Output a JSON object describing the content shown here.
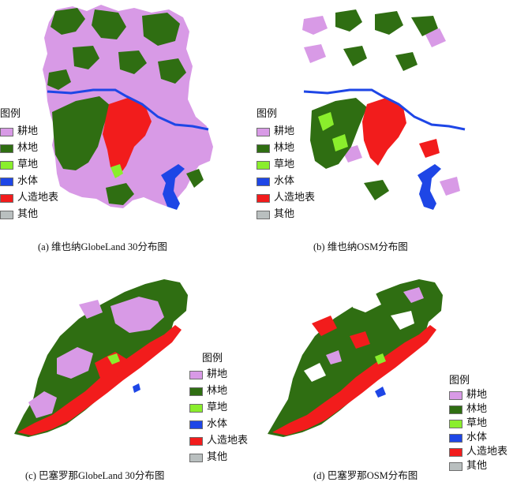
{
  "panels": [
    {
      "id": "a",
      "caption": "(a) 维也纳GlobeLand 30分布图",
      "legend_title": "图例",
      "legend": [
        {
          "label": "耕地",
          "color": "#d89ae6"
        },
        {
          "label": "林地",
          "color": "#2f6e12"
        },
        {
          "label": "草地",
          "color": "#8aee2c"
        },
        {
          "label": "水体",
          "color": "#1e46e6"
        },
        {
          "label": "人造地表",
          "color": "#f21c1c"
        },
        {
          "label": "其他",
          "color": "#b9bfbf"
        }
      ]
    },
    {
      "id": "b",
      "caption": "(b) 维也纳OSM分布图",
      "legend_title": "图例",
      "legend": [
        {
          "label": "耕地",
          "color": "#d89ae6"
        },
        {
          "label": "林地",
          "color": "#2f6e12"
        },
        {
          "label": "草地",
          "color": "#8aee2c"
        },
        {
          "label": "水体",
          "color": "#1e46e6"
        },
        {
          "label": "人造地表",
          "color": "#f21c1c"
        },
        {
          "label": "其他",
          "color": "#b9bfbf"
        }
      ]
    },
    {
      "id": "c",
      "caption": "(c) 巴塞罗那GlobeLand 30分布图",
      "legend_title": "图例",
      "legend": [
        {
          "label": "耕地",
          "color": "#d89ae6"
        },
        {
          "label": "林地",
          "color": "#2f6e12"
        },
        {
          "label": "草地",
          "color": "#8aee2c"
        },
        {
          "label": "水体",
          "color": "#1e46e6"
        },
        {
          "label": "人造地表",
          "color": "#f21c1c"
        },
        {
          "label": "其他",
          "color": "#b9bfbf"
        }
      ]
    },
    {
      "id": "d",
      "caption": "(d) 巴塞罗那OSM分布图",
      "legend_title": "图例",
      "legend": [
        {
          "label": "耕地",
          "color": "#d89ae6"
        },
        {
          "label": "林地",
          "color": "#2f6e12"
        },
        {
          "label": "草地",
          "color": "#8aee2c"
        },
        {
          "label": "水体",
          "color": "#1e46e6"
        },
        {
          "label": "人造地表",
          "color": "#f21c1c"
        },
        {
          "label": "其他",
          "color": "#b9bfbf"
        }
      ]
    }
  ]
}
